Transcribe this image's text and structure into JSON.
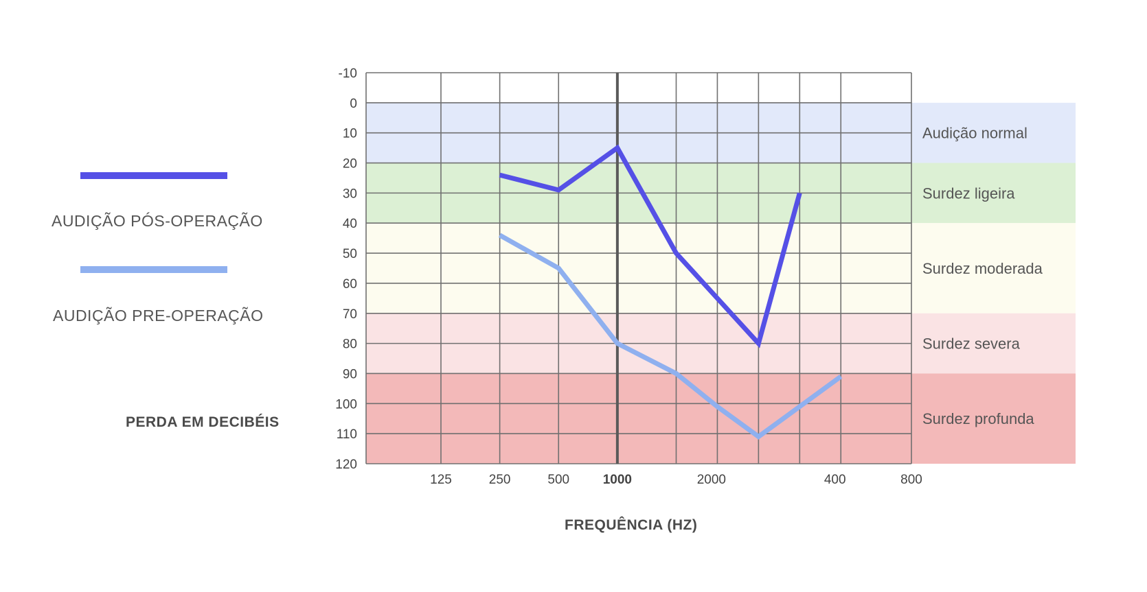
{
  "chart_data": {
    "type": "line",
    "title": "",
    "xlabel": "FREQUÊNCIA (HZ)",
    "ylabel": "PERDA EM DECIBÉIS",
    "y_ticks": [
      "-10",
      "0",
      "10",
      "20",
      "30",
      "40",
      "50",
      "60",
      "70",
      "80",
      "90",
      "100",
      "110",
      "120"
    ],
    "ylim": [
      -10,
      120
    ],
    "y_inverted": true,
    "grid": true,
    "x_tick_labels": [
      {
        "pos": 1,
        "label": "125",
        "bold": false
      },
      {
        "pos": 2,
        "label": "250",
        "bold": false
      },
      {
        "pos": 3,
        "label": "500",
        "bold": false
      },
      {
        "pos": 4,
        "label": "1000",
        "bold": true
      },
      {
        "pos": 5.6,
        "label": "2000",
        "bold": false
      },
      {
        "pos": 7.7,
        "label": "400",
        "bold": false
      },
      {
        "pos": 9,
        "label": "800",
        "bold": false
      }
    ],
    "x_gridlines": [
      1,
      2,
      3,
      4,
      5,
      5.7,
      6.4,
      7.1,
      7.8
    ],
    "x_emphasis": [
      4
    ],
    "xlim": [
      0,
      9
    ],
    "bands": [
      {
        "label": "Audição normal",
        "from": 0,
        "to": 20,
        "color": "#e2e9fa"
      },
      {
        "label": "Surdez ligeira",
        "from": 20,
        "to": 40,
        "color": "#dcf0d4"
      },
      {
        "label": "Surdez moderada",
        "from": 40,
        "to": 70,
        "color": "#fdfcef"
      },
      {
        "label": "Surdez severa",
        "from": 70,
        "to": 90,
        "color": "#fae3e4"
      },
      {
        "label": "Surdez profunda",
        "from": 90,
        "to": 120,
        "color": "#f3b9b9"
      }
    ],
    "series": [
      {
        "name": "AUDIÇÃO PÓS-OPERAÇÃO",
        "color": "#5550e6",
        "points": [
          [
            2,
            24
          ],
          [
            3,
            29
          ],
          [
            4,
            15
          ],
          [
            5,
            50
          ],
          [
            5.7,
            65
          ],
          [
            6.4,
            80
          ],
          [
            7.1,
            30
          ]
        ]
      },
      {
        "name": "AUDIÇÃO PRE-OPERAÇÃO",
        "color": "#8fb0ef",
        "points": [
          [
            2,
            44
          ],
          [
            3,
            55
          ],
          [
            4,
            80
          ],
          [
            5,
            90
          ],
          [
            5.7,
            101
          ],
          [
            6.4,
            111
          ],
          [
            7.1,
            101
          ],
          [
            7.8,
            91
          ]
        ]
      }
    ]
  }
}
